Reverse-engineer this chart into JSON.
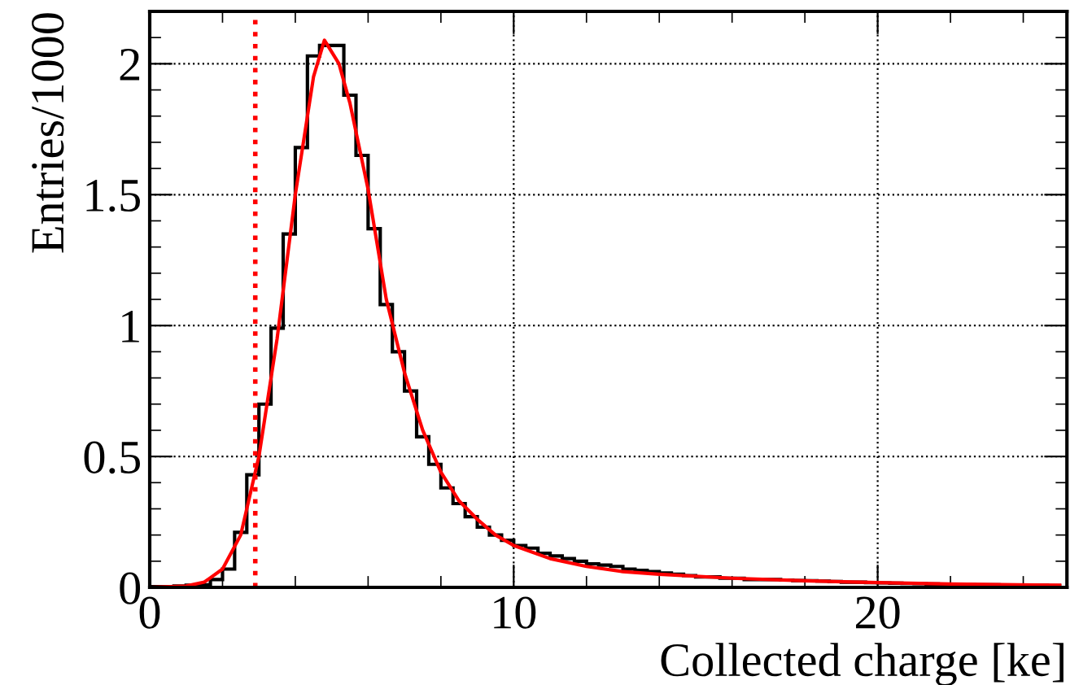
{
  "chart_data": {
    "type": "histogram",
    "xlabel": "Collected charge [ke]",
    "ylabel": "Entries/1000",
    "bins": [
      0,
      0.333,
      0.667,
      1,
      1.333,
      1.667,
      2,
      2.333,
      2.667,
      3,
      3.333,
      3.667,
      4,
      4.333,
      4.667,
      5,
      5.333,
      5.667,
      6,
      6.333,
      6.667,
      7,
      7.333,
      7.667,
      8,
      8.333,
      8.667,
      9,
      9.333,
      9.667,
      10,
      10.333,
      10.667,
      11,
      11.333,
      11.667,
      12,
      12.333,
      12.667,
      13,
      13.333,
      13.667,
      14,
      14.333,
      14.667,
      15,
      15.333,
      15.667,
      16,
      16.333,
      16.667,
      17,
      17.333,
      17.667,
      18,
      18.333,
      18.667,
      19,
      19.333,
      19.667,
      20,
      20.333,
      20.667,
      21,
      21.333,
      21.667,
      22,
      22.333,
      22.667,
      23,
      23.333,
      23.667,
      24,
      24.333,
      24.667,
      25
    ],
    "values": [
      0.003,
      0.003,
      0.005,
      0.008,
      0.01,
      0.03,
      0.07,
      0.21,
      0.43,
      0.7,
      0.99,
      1.35,
      1.68,
      2.03,
      2.07,
      2.07,
      1.88,
      1.65,
      1.37,
      1.08,
      0.9,
      0.75,
      0.575,
      0.47,
      0.38,
      0.32,
      0.27,
      0.23,
      0.2,
      0.18,
      0.16,
      0.15,
      0.13,
      0.12,
      0.11,
      0.1,
      0.09,
      0.085,
      0.08,
      0.07,
      0.065,
      0.06,
      0.055,
      0.05,
      0.045,
      0.04,
      0.04,
      0.035,
      0.035,
      0.03,
      0.03,
      0.03,
      0.028,
      0.026,
      0.025,
      0.024,
      0.022,
      0.02,
      0.02,
      0.018,
      0.017,
      0.016,
      0.015,
      0.014,
      0.013,
      0.012,
      0.012,
      0.011,
      0.01,
      0.01,
      0.009,
      0.009,
      0.008,
      0.008,
      0.007
    ],
    "color": "#000000",
    "series": [
      {
        "type": "line",
        "color": "#ff0000",
        "x": [
          0,
          1,
          1.5,
          2,
          2.5,
          3,
          3.5,
          4,
          4.5,
          4.8,
          5.2,
          5.5,
          6,
          6.5,
          7,
          7.5,
          8,
          8.5,
          9,
          9.5,
          10,
          11,
          12,
          13,
          14,
          16,
          18,
          20,
          22,
          25
        ],
        "values": [
          0,
          0.005,
          0.02,
          0.07,
          0.2,
          0.5,
          0.95,
          1.5,
          1.95,
          2.09,
          2.0,
          1.85,
          1.52,
          1.1,
          0.82,
          0.6,
          0.44,
          0.33,
          0.26,
          0.2,
          0.16,
          0.11,
          0.08,
          0.06,
          0.05,
          0.035,
          0.025,
          0.018,
          0.013,
          0.008
        ]
      }
    ],
    "ref_lines": [
      {
        "axis": "x",
        "value": 2.9,
        "color": "#ff0000",
        "line_style": "dotted"
      }
    ],
    "xlim": [
      0,
      25.2
    ],
    "ylim": [
      0,
      2.2
    ],
    "xticks": [
      0,
      10,
      20
    ],
    "yticks": [
      0,
      0.5,
      1,
      1.5,
      2
    ],
    "grid": true
  }
}
